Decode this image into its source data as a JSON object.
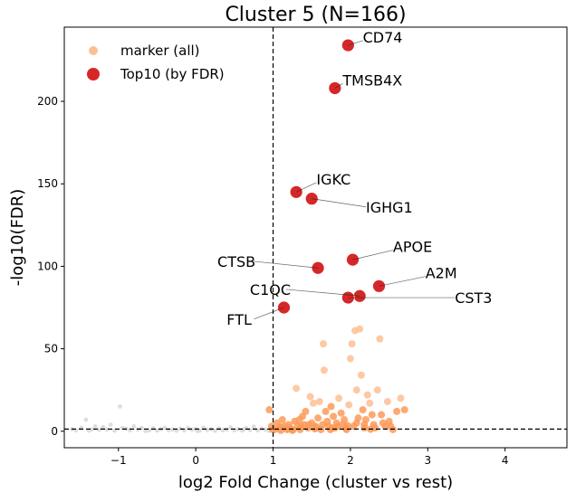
{
  "chart_data": {
    "type": "scatter",
    "title": "Cluster 5 (N=166)",
    "xlabel": "log2 Fold Change (cluster vs rest)",
    "ylabel": "-log10(FDR)",
    "xlim": [
      -1.7,
      4.8
    ],
    "ylim": [
      -10,
      245
    ],
    "xticks": [
      -1,
      0,
      1,
      2,
      3,
      4
    ],
    "yticks": [
      0,
      50,
      100,
      150,
      200
    ],
    "xtick_labels": [
      "−1",
      "0",
      "1",
      "2",
      "3",
      "4"
    ],
    "ytick_labels": [
      "0",
      "50",
      "100",
      "150",
      "200"
    ],
    "vline_x": 1,
    "hline_y": 1.3,
    "grid": false,
    "legend": {
      "position": "top-left",
      "entries": [
        {
          "label": "marker (all)",
          "color": "#fdbf94"
        },
        {
          "label": "Top10 (by FDR)",
          "color": "#d62728"
        }
      ]
    },
    "colors": {
      "background": "#d9d9d9",
      "marker": "#fd9a58",
      "marker_light": "#fdbf94",
      "top": "#d62728"
    },
    "background_points": [
      [
        -1.55,
        0.5
      ],
      [
        -1.48,
        2
      ],
      [
        -1.42,
        7
      ],
      [
        -1.35,
        1
      ],
      [
        -1.3,
        3
      ],
      [
        -1.25,
        0.8
      ],
      [
        -1.2,
        2.5
      ],
      [
        -1.15,
        1
      ],
      [
        -1.1,
        4
      ],
      [
        -1.05,
        0.3
      ],
      [
        -0.98,
        15
      ],
      [
        -0.95,
        2
      ],
      [
        -0.9,
        1.5
      ],
      [
        -0.85,
        0.6
      ],
      [
        -0.8,
        3
      ],
      [
        -0.75,
        1
      ],
      [
        -0.7,
        2
      ],
      [
        -0.6,
        0.5
      ],
      [
        -0.55,
        1.8
      ],
      [
        -0.5,
        0.4
      ],
      [
        -0.45,
        1.2
      ],
      [
        -0.4,
        2.2
      ],
      [
        -0.35,
        0.7
      ],
      [
        -0.3,
        1
      ],
      [
        -0.25,
        0.3
      ],
      [
        -0.2,
        1.6
      ],
      [
        -0.15,
        0.5
      ],
      [
        -0.1,
        2
      ],
      [
        -0.05,
        0.9
      ],
      [
        0.0,
        1.4
      ],
      [
        0.05,
        0.4
      ],
      [
        0.1,
        2.1
      ],
      [
        0.15,
        0.8
      ],
      [
        0.2,
        1.2
      ],
      [
        0.25,
        0.3
      ],
      [
        0.3,
        1.7
      ],
      [
        0.35,
        0.6
      ],
      [
        0.4,
        1
      ],
      [
        0.45,
        2.4
      ],
      [
        0.5,
        0.5
      ],
      [
        0.55,
        1.3
      ],
      [
        0.6,
        0.4
      ],
      [
        0.65,
        1.9
      ],
      [
        0.7,
        0.7
      ],
      [
        0.75,
        2.8
      ],
      [
        0.8,
        0.5
      ],
      [
        0.85,
        1.5
      ],
      [
        0.9,
        0.9
      ],
      [
        0.95,
        0.2
      ],
      [
        -1.6,
        1.2
      ],
      [
        -1.38,
        0.4
      ],
      [
        -0.65,
        0.2
      ],
      [
        0.02,
        0.2
      ],
      [
        0.62,
        1.1
      ]
    ],
    "marker_points": [
      [
        0.95,
        13
      ],
      [
        0.98,
        3
      ],
      [
        1.02,
        1
      ],
      [
        1.05,
        5
      ],
      [
        1.08,
        2
      ],
      [
        1.1,
        0.5
      ],
      [
        1.12,
        7
      ],
      [
        1.15,
        3
      ],
      [
        1.18,
        1
      ],
      [
        1.2,
        4
      ],
      [
        1.22,
        2
      ],
      [
        1.25,
        0.5
      ],
      [
        1.28,
        6
      ],
      [
        1.3,
        26
      ],
      [
        1.32,
        3
      ],
      [
        1.35,
        1
      ],
      [
        1.38,
        9
      ],
      [
        1.4,
        4
      ],
      [
        1.42,
        12
      ],
      [
        1.45,
        2
      ],
      [
        1.48,
        21
      ],
      [
        1.5,
        5
      ],
      [
        1.52,
        17
      ],
      [
        1.55,
        3
      ],
      [
        1.58,
        8
      ],
      [
        1.6,
        18
      ],
      [
        1.62,
        1
      ],
      [
        1.65,
        53
      ],
      [
        1.66,
        37
      ],
      [
        1.68,
        12
      ],
      [
        1.7,
        6
      ],
      [
        1.72,
        3
      ],
      [
        1.75,
        15
      ],
      [
        1.78,
        9
      ],
      [
        1.8,
        2
      ],
      [
        1.82,
        5
      ],
      [
        1.85,
        20
      ],
      [
        1.88,
        11
      ],
      [
        1.9,
        4
      ],
      [
        1.92,
        7
      ],
      [
        1.95,
        1
      ],
      [
        1.98,
        16
      ],
      [
        2.0,
        44
      ],
      [
        2.02,
        53
      ],
      [
        2.04,
        3
      ],
      [
        2.06,
        61
      ],
      [
        2.08,
        25
      ],
      [
        2.1,
        8
      ],
      [
        2.12,
        62
      ],
      [
        2.14,
        34
      ],
      [
        2.16,
        13
      ],
      [
        2.18,
        2
      ],
      [
        2.2,
        7
      ],
      [
        2.25,
        17
      ],
      [
        2.3,
        4
      ],
      [
        2.35,
        25
      ],
      [
        2.38,
        56
      ],
      [
        2.4,
        10
      ],
      [
        2.45,
        3
      ],
      [
        2.48,
        18
      ],
      [
        2.5,
        6
      ],
      [
        2.55,
        1
      ],
      [
        2.6,
        12
      ],
      [
        2.65,
        20
      ],
      [
        2.7,
        13
      ],
      [
        2.22,
        22
      ],
      [
        2.28,
        10
      ],
      [
        1.34,
        7
      ],
      [
        1.46,
        4
      ],
      [
        1.56,
        2
      ],
      [
        1.64,
        4
      ],
      [
        1.74,
        1
      ],
      [
        1.84,
        3
      ],
      [
        1.94,
        2
      ],
      [
        2.08,
        5
      ],
      [
        2.18,
        4
      ],
      [
        2.32,
        2
      ],
      [
        2.42,
        5
      ],
      [
        2.52,
        3
      ],
      [
        1.1,
        2.5
      ],
      [
        1.2,
        1.5
      ],
      [
        0.99,
        1.2
      ],
      [
        1.26,
        1
      ],
      [
        1.36,
        3
      ],
      [
        1.54,
        1.5
      ],
      [
        1.76,
        2
      ],
      [
        1.96,
        3.5
      ],
      [
        2.26,
        1.2
      ]
    ],
    "top_genes": [
      {
        "gene": "CD74",
        "x": 1.97,
        "y": 234,
        "label_x": 2.16,
        "label_y": 239
      },
      {
        "gene": "TMSB4X",
        "x": 1.8,
        "y": 208,
        "label_x": 1.9,
        "label_y": 213
      },
      {
        "gene": "IGKC",
        "x": 1.3,
        "y": 145,
        "label_x": 1.56,
        "label_y": 153
      },
      {
        "gene": "IGHG1",
        "x": 1.5,
        "y": 141,
        "label_x": 2.2,
        "label_y": 136
      },
      {
        "gene": "APOE",
        "x": 2.03,
        "y": 104,
        "label_x": 2.55,
        "label_y": 112
      },
      {
        "gene": "CTSB",
        "x": 1.58,
        "y": 99,
        "label_x": 0.28,
        "label_y": 103
      },
      {
        "gene": "A2M",
        "x": 2.37,
        "y": 88,
        "label_x": 2.97,
        "label_y": 96
      },
      {
        "gene": "C1QC",
        "x": 2.12,
        "y": 82,
        "label_x": 0.7,
        "label_y": 86
      },
      {
        "gene": "CST3",
        "x": 1.97,
        "y": 81,
        "label_x": 3.35,
        "label_y": 81
      },
      {
        "gene": "FTL",
        "x": 1.14,
        "y": 75,
        "label_x": 0.4,
        "label_y": 68
      }
    ]
  }
}
